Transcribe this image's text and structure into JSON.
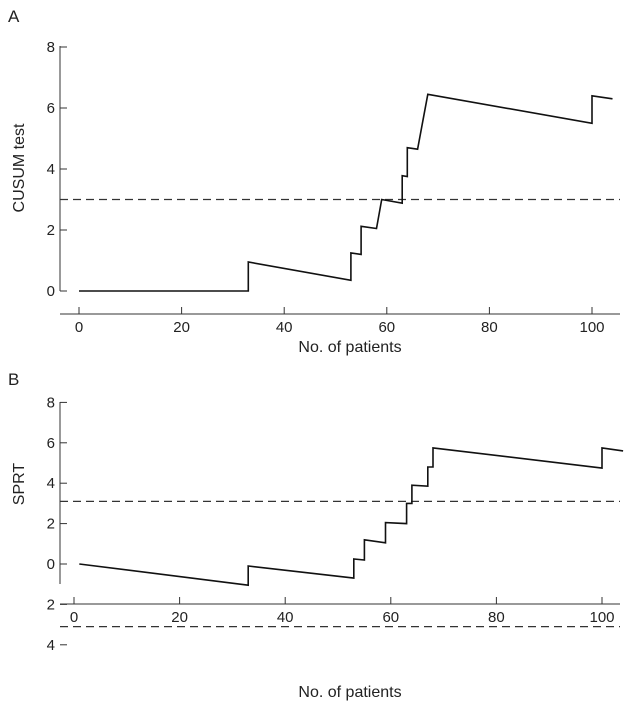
{
  "chart_data": [
    {
      "type": "line",
      "panel_label": "A",
      "xlabel": "No. of patients",
      "ylabel": "CUSUM test",
      "xlim": [
        0,
        105
      ],
      "ylim": [
        0,
        8
      ],
      "xticks": [
        0,
        20,
        40,
        60,
        80,
        100
      ],
      "yticks": [
        0,
        2,
        4,
        6,
        8
      ],
      "ytick_labels": [
        "0",
        "2",
        "4",
        "6",
        "8"
      ],
      "grid": false,
      "thresholds": [
        3.0
      ],
      "series": [
        {
          "x": [
            0,
            33,
            33,
            53,
            53,
            55,
            55,
            58,
            58,
            59,
            59,
            63,
            63,
            64,
            64,
            66,
            66,
            67,
            67,
            68,
            68,
            100,
            100,
            104
          ],
          "y": [
            0,
            0,
            0.95,
            0.35,
            1.25,
            1.2,
            2.12,
            2.05,
            2.05,
            3.0,
            3.0,
            2.88,
            3.78,
            3.75,
            4.7,
            4.65,
            4.65,
            5.55,
            5.55,
            6.45,
            6.45,
            5.5,
            6.4,
            6.3
          ]
        }
      ]
    },
    {
      "type": "line",
      "panel_label": "B",
      "xlabel": "No. of patients",
      "ylabel": "SPRT",
      "xlim": [
        0,
        105
      ],
      "ylim": [
        -4,
        8
      ],
      "xticks": [
        0,
        20,
        40,
        60,
        80,
        100
      ],
      "yticks": [
        -4,
        -2,
        0,
        2,
        4,
        6,
        8
      ],
      "ytick_labels": [
        "4",
        "2",
        "0",
        "2",
        "4",
        "6",
        "8"
      ],
      "grid": false,
      "thresholds": [
        3.1,
        -3.1
      ],
      "series": [
        {
          "x": [
            1,
            33,
            33,
            53,
            53,
            55,
            55,
            59,
            59,
            63,
            63,
            64,
            64,
            67,
            67,
            68,
            68,
            100,
            100,
            104
          ],
          "y": [
            0,
            -1.05,
            -0.1,
            -0.7,
            0.25,
            0.2,
            1.2,
            1.05,
            2.05,
            2.0,
            3.0,
            3.0,
            3.9,
            3.85,
            4.8,
            4.8,
            5.75,
            4.75,
            5.75,
            5.6
          ]
        }
      ]
    }
  ]
}
